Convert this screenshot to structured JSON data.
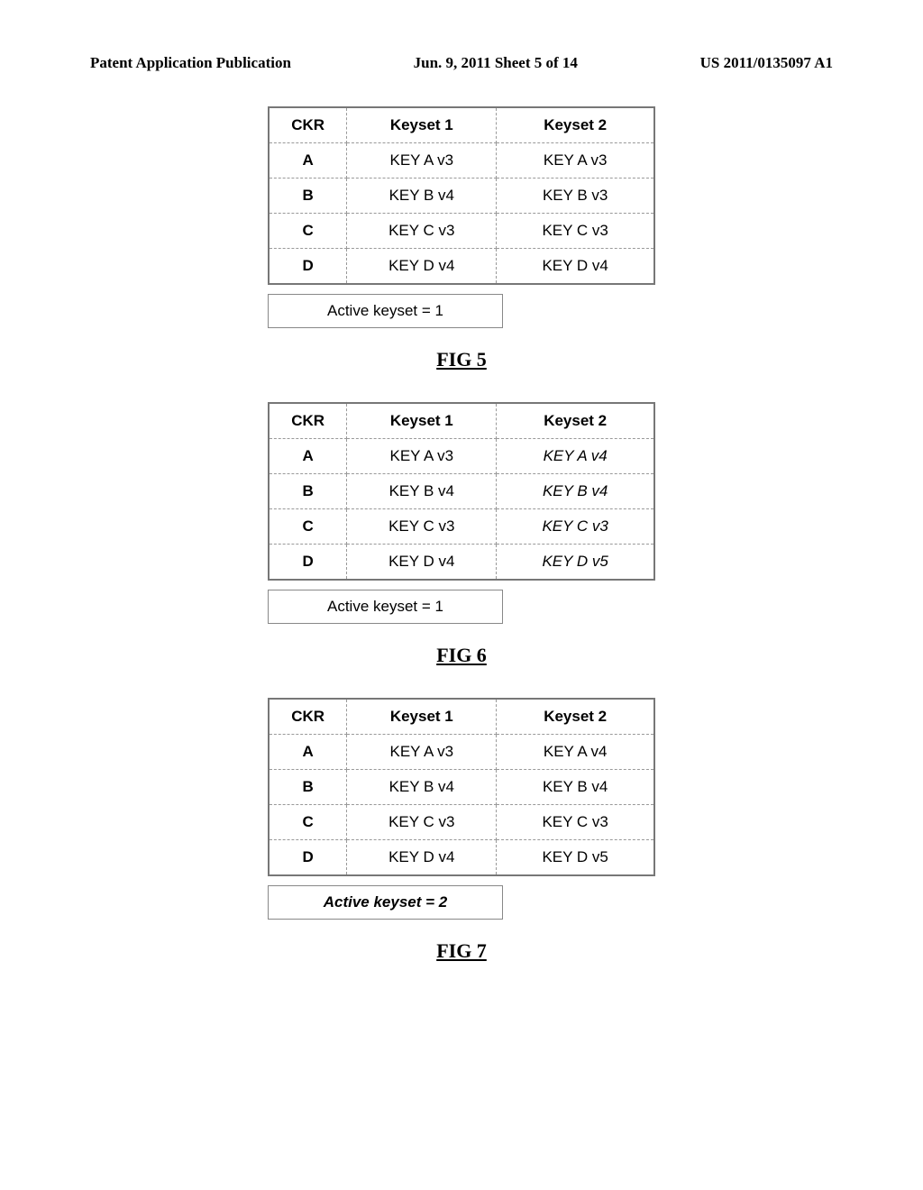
{
  "header": {
    "left": "Patent Application Publication",
    "center": "Jun. 9, 2011  Sheet 5 of 14",
    "right": "US 2011/0135097 A1"
  },
  "figures": [
    {
      "caption": "FIG 5",
      "columns": [
        "CKR",
        "Keyset 1",
        "Keyset 2"
      ],
      "rows": [
        {
          "ckr": "A",
          "k1": "KEY A v3",
          "k2": "KEY A v3",
          "k2_emph": false
        },
        {
          "ckr": "B",
          "k1": "KEY B v4",
          "k2": "KEY B v3",
          "k2_emph": false
        },
        {
          "ckr": "C",
          "k1": "KEY C v3",
          "k2": "KEY C v3",
          "k2_emph": false
        },
        {
          "ckr": "D",
          "k1": "KEY D v4",
          "k2": "KEY D v4",
          "k2_emph": false
        }
      ],
      "active": "Active keyset = 1",
      "active_emph": false
    },
    {
      "caption": "FIG 6",
      "columns": [
        "CKR",
        "Keyset 1",
        "Keyset 2"
      ],
      "rows": [
        {
          "ckr": "A",
          "k1": "KEY A v3",
          "k2": "KEY A v4",
          "k2_emph": true
        },
        {
          "ckr": "B",
          "k1": "KEY B v4",
          "k2": "KEY B v4",
          "k2_emph": true
        },
        {
          "ckr": "C",
          "k1": "KEY C v3",
          "k2": "KEY C v3",
          "k2_emph": true
        },
        {
          "ckr": "D",
          "k1": "KEY D v4",
          "k2": "KEY D v5",
          "k2_emph": true
        }
      ],
      "active": "Active keyset = 1",
      "active_emph": false
    },
    {
      "caption": "FIG 7",
      "columns": [
        "CKR",
        "Keyset 1",
        "Keyset 2"
      ],
      "rows": [
        {
          "ckr": "A",
          "k1": "KEY A v3",
          "k2": "KEY A v4",
          "k2_emph": false
        },
        {
          "ckr": "B",
          "k1": "KEY B v4",
          "k2": "KEY B v4",
          "k2_emph": false
        },
        {
          "ckr": "C",
          "k1": "KEY C v3",
          "k2": "KEY C v3",
          "k2_emph": false
        },
        {
          "ckr": "D",
          "k1": "KEY D v4",
          "k2": "KEY D v5",
          "k2_emph": false
        }
      ],
      "active": "Active keyset = 2",
      "active_emph": true
    }
  ]
}
